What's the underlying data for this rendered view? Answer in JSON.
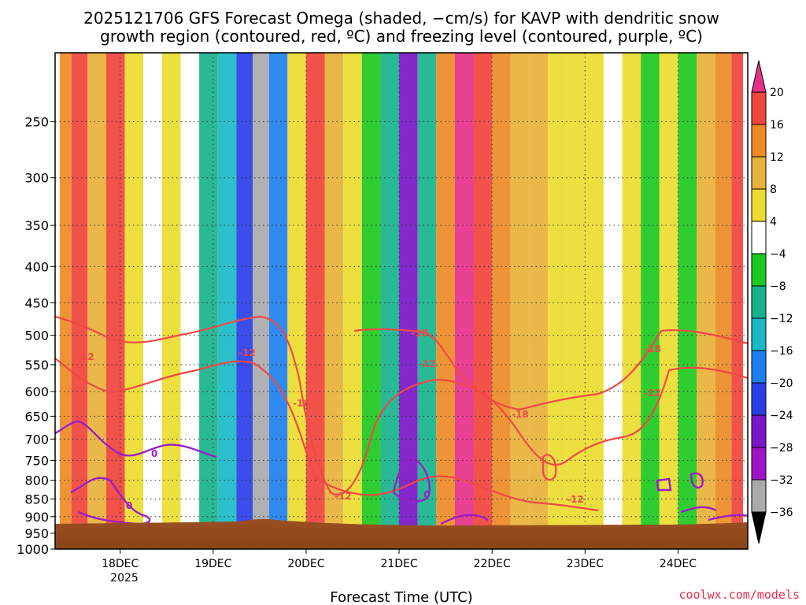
{
  "chart_data": {
    "type": "heatmap",
    "title_line1": "2025121706 GFS Forecast Omega (shaded, −cm/s) for KAVP with dendritic snow",
    "title_line2": "growth region (contoured, red, ºC) and freezing level (contoured, purple, ºC)",
    "xlabel": "Forecast Time (UTC)",
    "x_ticks": [
      "18DEC",
      "19DEC",
      "20DEC",
      "21DEC",
      "22DEC",
      "23DEC",
      "24DEC"
    ],
    "x_year": "2025",
    "y_ticks": [
      "250",
      "300",
      "350",
      "400",
      "450",
      "500",
      "550",
      "600",
      "650",
      "700",
      "750",
      "800",
      "850",
      "900",
      "950",
      "1000"
    ],
    "y_values_hpa": [
      250,
      300,
      350,
      400,
      450,
      500,
      550,
      600,
      650,
      700,
      750,
      800,
      850,
      900,
      950,
      1000
    ],
    "ylim_hpa": [
      200,
      1000
    ],
    "x_range_days": [
      17.3,
      24.75
    ],
    "colorbar_labels": [
      "20",
      "16",
      "12",
      "8",
      "4",
      "−4",
      "−8",
      "−12",
      "−16",
      "−20",
      "−24",
      "−28",
      "−32",
      "−36"
    ],
    "colorbar_levels": [
      20,
      16,
      12,
      8,
      4,
      -4,
      -8,
      -12,
      -16,
      -20,
      -24,
      -28,
      -32,
      -36
    ],
    "colorbar_colors": [
      "#e8308a",
      "#f0443c",
      "#ee8b25",
      "#e8b23a",
      "#ecdc2f",
      "#ffffff",
      "#1ec91e",
      "#17b38c",
      "#1ab8c6",
      "#1e7ff0",
      "#2a3ee8",
      "#7a16c8",
      "#a014c8",
      "#aaaaaa",
      "#000000"
    ],
    "contour_labels": {
      "dgz": [
        "-12",
        "-18"
      ],
      "freezing": [
        "0"
      ]
    },
    "omega_columns": [
      {
        "x": 17.4,
        "v": 14
      },
      {
        "x": 17.55,
        "v": 16
      },
      {
        "x": 17.75,
        "v": 10
      },
      {
        "x": 17.95,
        "v": 18
      },
      {
        "x": 18.15,
        "v": 6
      },
      {
        "x": 18.35,
        "v": 0
      },
      {
        "x": 18.55,
        "v": 4
      },
      {
        "x": 18.75,
        "v": -4
      },
      {
        "x": 18.95,
        "v": -10
      },
      {
        "x": 19.15,
        "v": -14
      },
      {
        "x": 19.35,
        "v": -22
      },
      {
        "x": 19.5,
        "v": -36
      },
      {
        "x": 19.7,
        "v": -18
      },
      {
        "x": 19.9,
        "v": 4
      },
      {
        "x": 20.1,
        "v": 16
      },
      {
        "x": 20.3,
        "v": 10
      },
      {
        "x": 20.5,
        "v": 6
      },
      {
        "x": 20.7,
        "v": -6
      },
      {
        "x": 20.9,
        "v": -12
      },
      {
        "x": 21.1,
        "v": -26
      },
      {
        "x": 21.3,
        "v": -10
      },
      {
        "x": 21.5,
        "v": 12
      },
      {
        "x": 21.7,
        "v": 20
      },
      {
        "x": 21.9,
        "v": 18
      },
      {
        "x": 22.1,
        "v": 14
      },
      {
        "x": 22.3,
        "v": 8
      },
      {
        "x": 22.5,
        "v": 10
      },
      {
        "x": 22.7,
        "v": 6
      },
      {
        "x": 22.9,
        "v": 4
      },
      {
        "x": 23.1,
        "v": 6
      },
      {
        "x": 23.3,
        "v": 0
      },
      {
        "x": 23.5,
        "v": 4
      },
      {
        "x": 23.7,
        "v": -6
      },
      {
        "x": 23.9,
        "v": 6
      },
      {
        "x": 24.1,
        "v": -8
      },
      {
        "x": 24.3,
        "v": 8
      },
      {
        "x": 24.5,
        "v": 14
      },
      {
        "x": 24.65,
        "v": 16
      }
    ]
  },
  "credit": "coolwx.com/models"
}
